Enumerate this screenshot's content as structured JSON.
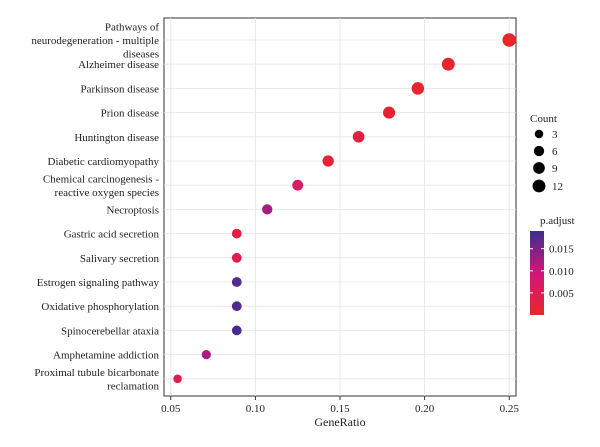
{
  "chart_data": {
    "type": "scatter",
    "xlabel": "GeneRatio",
    "x_ticks": [
      0.05,
      0.1,
      0.15,
      0.2,
      0.25
    ],
    "x_tick_labels": [
      "0.05",
      "0.10",
      "0.15",
      "0.20",
      "0.25"
    ],
    "xlim": [
      0.046,
      0.254
    ],
    "grid": true,
    "categories": [
      [
        "Pathways of",
        "neurodegeneration - multiple",
        "diseases"
      ],
      [
        "Alzheimer disease"
      ],
      [
        "Parkinson disease"
      ],
      [
        "Prion disease"
      ],
      [
        "Huntington disease"
      ],
      [
        "Diabetic cardiomyopathy"
      ],
      [
        "Chemical carcinogenesis -",
        "reactive oxygen species"
      ],
      [
        "Necroptosis"
      ],
      [
        "Gastric acid secretion"
      ],
      [
        "Salivary secretion"
      ],
      [
        "Estrogen signaling pathway"
      ],
      [
        "Oxidative phosphorylation"
      ],
      [
        "Spinocerebellar ataxia"
      ],
      [
        "Amphetamine addiction"
      ],
      [
        "Proximal tubule bicarbonate",
        "reclamation"
      ]
    ],
    "points": [
      {
        "gene_ratio": 0.25,
        "count": 14,
        "p_adjust": 0.0002
      },
      {
        "gene_ratio": 0.214,
        "count": 12,
        "p_adjust": 0.0004
      },
      {
        "gene_ratio": 0.196,
        "count": 11,
        "p_adjust": 0.0006
      },
      {
        "gene_ratio": 0.179,
        "count": 10,
        "p_adjust": 0.0008
      },
      {
        "gene_ratio": 0.161,
        "count": 9,
        "p_adjust": 0.0025
      },
      {
        "gene_ratio": 0.143,
        "count": 8,
        "p_adjust": 0.0015
      },
      {
        "gene_ratio": 0.125,
        "count": 7,
        "p_adjust": 0.0065
      },
      {
        "gene_ratio": 0.107,
        "count": 6,
        "p_adjust": 0.0125
      },
      {
        "gene_ratio": 0.089,
        "count": 5,
        "p_adjust": 0.003
      },
      {
        "gene_ratio": 0.089,
        "count": 5,
        "p_adjust": 0.004
      },
      {
        "gene_ratio": 0.089,
        "count": 5,
        "p_adjust": 0.0175
      },
      {
        "gene_ratio": 0.089,
        "count": 5,
        "p_adjust": 0.0175
      },
      {
        "gene_ratio": 0.089,
        "count": 5,
        "p_adjust": 0.018
      },
      {
        "gene_ratio": 0.071,
        "count": 4,
        "p_adjust": 0.012
      },
      {
        "gene_ratio": 0.054,
        "count": 3,
        "p_adjust": 0.005
      }
    ],
    "size_legend": {
      "title": "Count",
      "values": [
        3,
        6,
        9,
        12
      ],
      "labels": [
        "3",
        "6",
        "9",
        "12"
      ]
    },
    "color_legend": {
      "title": "p.adjust",
      "min": 0.0,
      "max": 0.019,
      "ticks": [
        0.005,
        0.01,
        0.015
      ],
      "tick_labels": [
        "0.005",
        "0.010",
        "0.015"
      ],
      "low_color": "#E8262A",
      "mid_color": "#D4147A",
      "high_color": "#3B2F8F"
    }
  }
}
